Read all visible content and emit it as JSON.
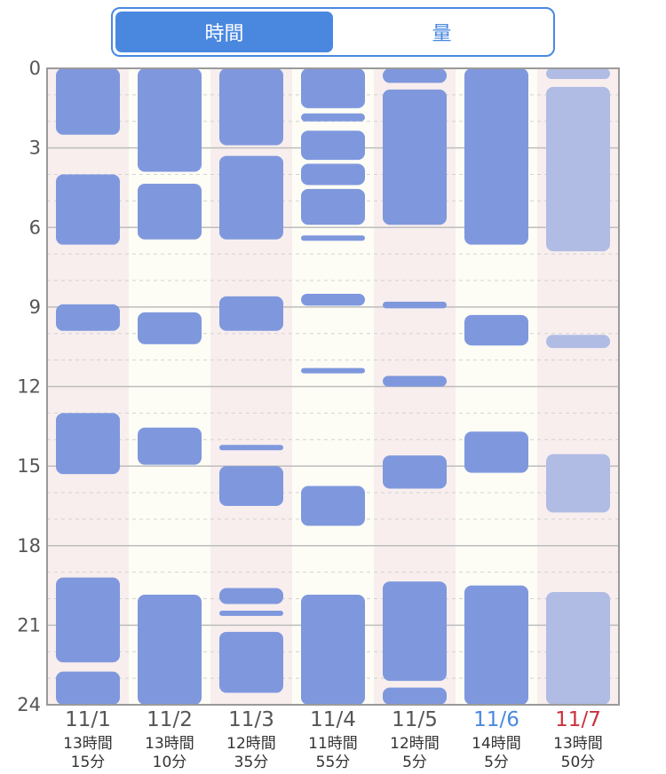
{
  "tabs": {
    "time": "時間",
    "amount": "量",
    "selected": "time"
  },
  "colors": {
    "accent": "#4a88e0",
    "bar": "#7f98dd",
    "bar_faded": "#b0bce4",
    "weekday_text": "#555555",
    "saturday_text": "#4a88e0",
    "sunday_text": "#c8323c",
    "col_pink": "#f8eeee",
    "col_cream": "#fdfdf6"
  },
  "chart_data": {
    "type": "range-bar",
    "ylim": [
      0,
      24
    ],
    "yticks": [
      "0",
      "3",
      "6",
      "9",
      "12",
      "15",
      "18",
      "21",
      "24"
    ],
    "days": [
      {
        "date": "11/1",
        "hours": "13時間",
        "minutes": "15分",
        "kind": "weekday",
        "faded": false,
        "segments": [
          [
            0,
            2.5
          ],
          [
            4,
            6.65
          ],
          [
            8.9,
            9.9
          ],
          [
            13,
            15.3
          ],
          [
            19.2,
            22.4
          ],
          [
            22.75,
            24
          ]
        ]
      },
      {
        "date": "11/2",
        "hours": "13時間",
        "minutes": "10分",
        "kind": "weekday",
        "faded": false,
        "segments": [
          [
            0,
            3.9
          ],
          [
            4.35,
            6.45
          ],
          [
            9.2,
            10.4
          ],
          [
            13.55,
            14.95
          ],
          [
            19.85,
            24
          ]
        ]
      },
      {
        "date": "11/3",
        "hours": "12時間",
        "minutes": "35分",
        "kind": "weekday",
        "faded": false,
        "segments": [
          [
            0,
            2.9
          ],
          [
            3.3,
            6.45
          ],
          [
            8.6,
            9.9
          ],
          [
            14.2,
            14.4
          ],
          [
            15,
            16.5
          ],
          [
            19.6,
            20.2
          ],
          [
            20.45,
            20.65
          ],
          [
            21.25,
            23.55
          ]
        ]
      },
      {
        "date": "11/4",
        "hours": "11時間",
        "minutes": "55分",
        "kind": "weekday",
        "faded": false,
        "segments": [
          [
            0,
            1.5
          ],
          [
            1.7,
            2.0
          ],
          [
            2.35,
            3.45
          ],
          [
            3.6,
            4.4
          ],
          [
            4.55,
            5.9
          ],
          [
            6.3,
            6.5
          ],
          [
            8.5,
            8.95
          ],
          [
            11.3,
            11.5
          ],
          [
            15.75,
            17.25
          ],
          [
            19.85,
            24
          ]
        ]
      },
      {
        "date": "11/5",
        "hours": "12時間",
        "minutes": "5分",
        "kind": "weekday",
        "faded": false,
        "segments": [
          [
            0,
            0.55
          ],
          [
            0.8,
            5.9
          ],
          [
            8.8,
            9.05
          ],
          [
            11.6,
            12.0
          ],
          [
            14.6,
            15.85
          ],
          [
            19.35,
            23.1
          ],
          [
            23.35,
            24
          ]
        ]
      },
      {
        "date": "11/6",
        "hours": "14時間",
        "minutes": "5分",
        "kind": "saturday",
        "faded": false,
        "segments": [
          [
            0,
            6.65
          ],
          [
            9.3,
            10.45
          ],
          [
            13.7,
            15.25
          ],
          [
            19.5,
            24
          ]
        ]
      },
      {
        "date": "11/7",
        "hours": "13時間",
        "minutes": "50分",
        "kind": "sunday",
        "faded": true,
        "segments": [
          [
            0,
            0.4
          ],
          [
            0.7,
            6.9
          ],
          [
            10.05,
            10.55
          ],
          [
            14.55,
            16.75
          ],
          [
            19.75,
            24
          ]
        ]
      }
    ]
  }
}
